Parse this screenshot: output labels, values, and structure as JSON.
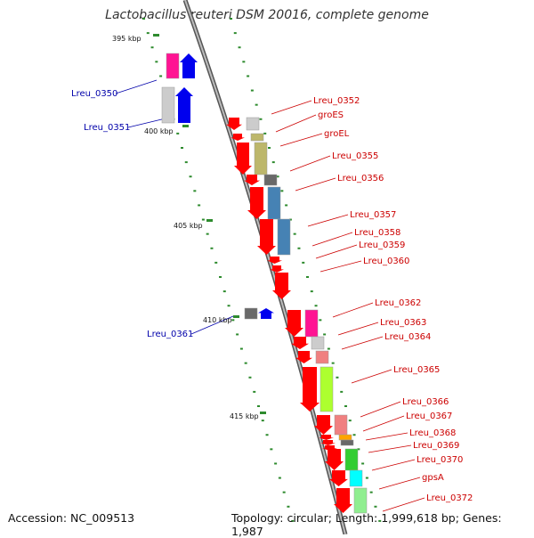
{
  "title": "Lactobacillus reuteri DSM 20016, complete genome",
  "accession_label": "Accession: NC_009513",
  "summary_label": "Topology: circular; Length: 1,999,618 bp; Genes: 1,987",
  "scale_labels": [
    "395 kbp",
    "400 kbp",
    "405 kbp",
    "410 kbp",
    "415 kbp"
  ],
  "genes": [
    {
      "name": "Lreu_0350",
      "strand": "reverse",
      "color": "#0000ee"
    },
    {
      "name": "Lreu_0351",
      "strand": "reverse",
      "color": "#0000ee"
    },
    {
      "name": "Lreu_0352",
      "strand": "forward",
      "color": "#ff0000"
    },
    {
      "name": "groES",
      "strand": "forward",
      "color": "#ff0000"
    },
    {
      "name": "groEL",
      "strand": "forward",
      "color": "#ff0000"
    },
    {
      "name": "Lreu_0355",
      "strand": "forward",
      "color": "#ff0000"
    },
    {
      "name": "Lreu_0356",
      "strand": "forward",
      "color": "#ff0000"
    },
    {
      "name": "Lreu_0357",
      "strand": "forward",
      "color": "#ff0000"
    },
    {
      "name": "Lreu_0358",
      "strand": "forward",
      "color": "#ff0000"
    },
    {
      "name": "Lreu_0359",
      "strand": "forward",
      "color": "#ff0000"
    },
    {
      "name": "Lreu_0360",
      "strand": "forward",
      "color": "#ff0000"
    },
    {
      "name": "Lreu_0361",
      "strand": "reverse",
      "color": "#0000ee"
    },
    {
      "name": "Lreu_0362",
      "strand": "forward",
      "color": "#ff0000"
    },
    {
      "name": "Lreu_0363",
      "strand": "forward",
      "color": "#ff0000"
    },
    {
      "name": "Lreu_0364",
      "strand": "forward",
      "color": "#ff0000"
    },
    {
      "name": "Lreu_0365",
      "strand": "forward",
      "color": "#ff0000"
    },
    {
      "name": "Lreu_0366",
      "strand": "forward",
      "color": "#ff0000"
    },
    {
      "name": "Lreu_0367",
      "strand": "forward",
      "color": "#ff0000"
    },
    {
      "name": "Lreu_0368",
      "strand": "forward",
      "color": "#ff0000"
    },
    {
      "name": "Lreu_0369",
      "strand": "forward",
      "color": "#ff0000"
    },
    {
      "name": "Lreu_0370",
      "strand": "forward",
      "color": "#ff0000"
    },
    {
      "name": "gpsA",
      "strand": "forward",
      "color": "#ff0000"
    },
    {
      "name": "Lreu_0372",
      "strand": "forward",
      "color": "#ff0000"
    }
  ],
  "cog_colors": [
    "#ff1493",
    "#cccccc",
    "#bdb76b",
    "#696969",
    "#4682b4",
    "#f08080",
    "#adff2f",
    "#ffa500",
    "#32cd32",
    "#6b8e23",
    "#00ffff",
    "#90ee90"
  ]
}
